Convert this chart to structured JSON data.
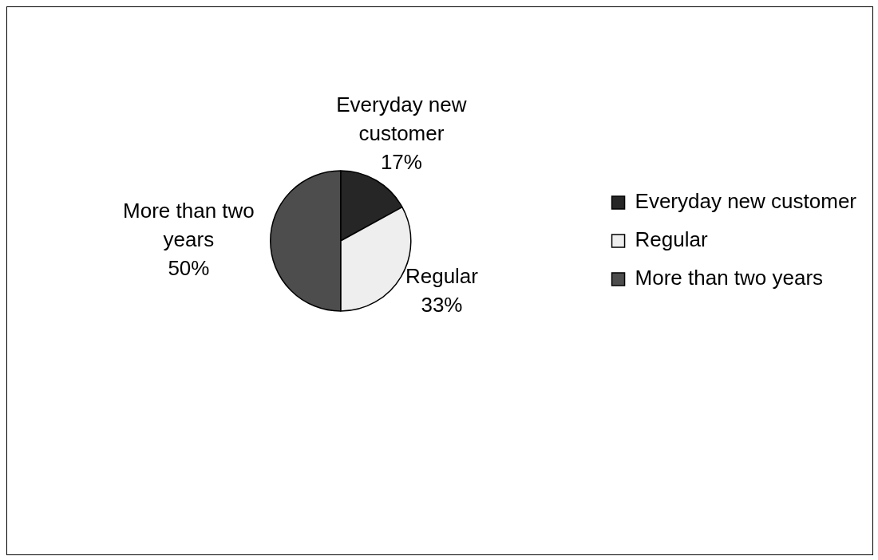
{
  "chart_data": {
    "type": "pie",
    "categories": [
      "Everyday new customer",
      "Regular",
      "More than two years"
    ],
    "values": [
      17,
      33,
      50
    ],
    "value_labels": [
      "17%",
      "33%",
      "50%"
    ],
    "colors": [
      "#262626",
      "#eeeeee",
      "#4d4d4d"
    ],
    "legend": "right"
  }
}
